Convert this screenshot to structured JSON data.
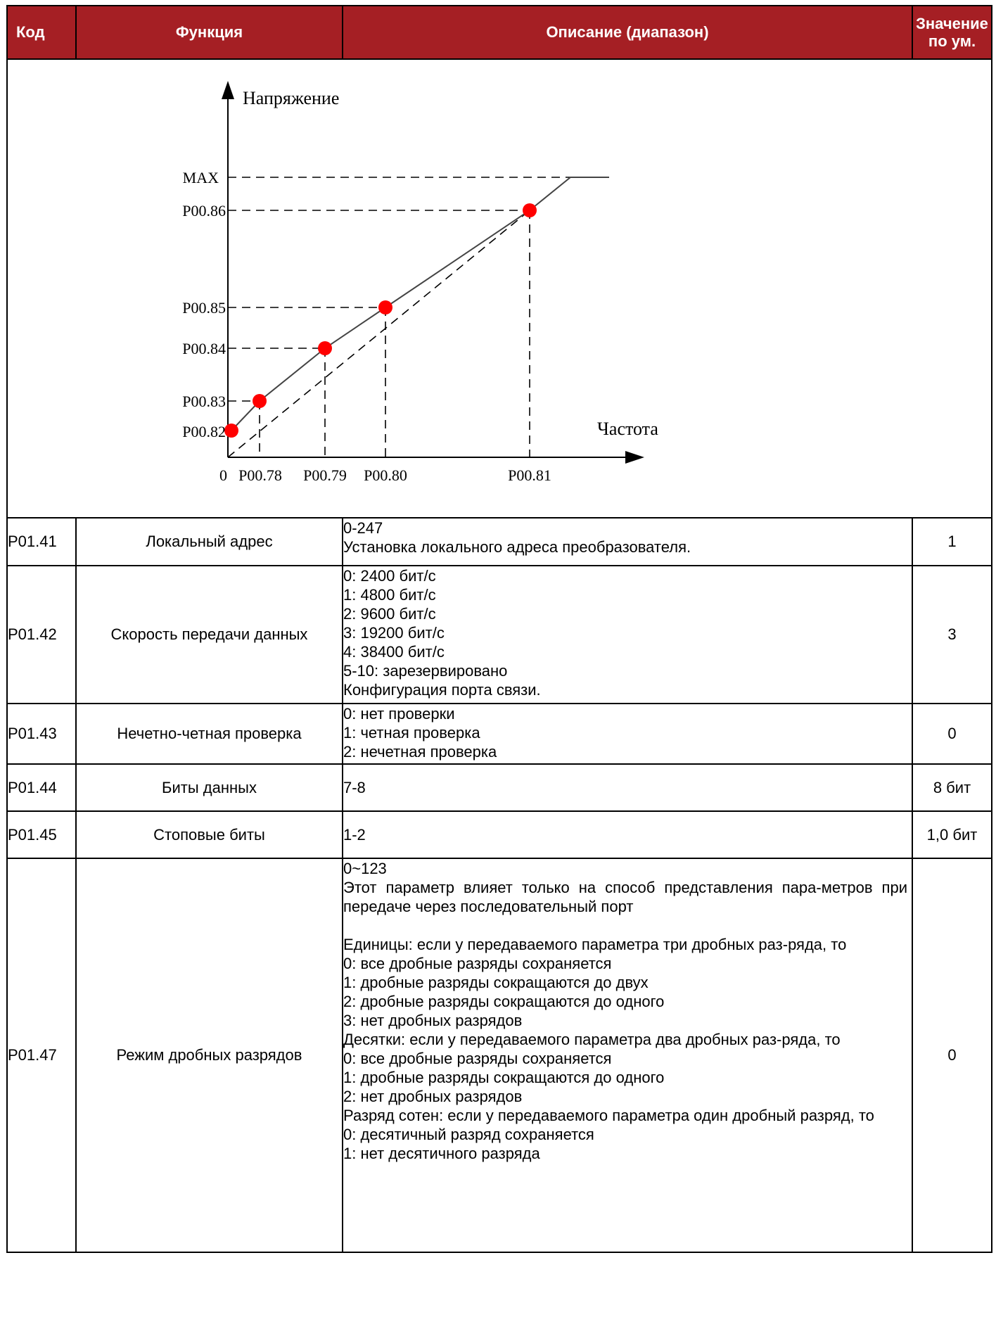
{
  "header": {
    "code": "Код",
    "function": "Функция",
    "description": "Описание (диапазон)",
    "default_line1": "Значение",
    "default_line2": "по ум."
  },
  "colors": {
    "header_bg": "#a51f24",
    "point": "#ff0000"
  },
  "diagram": {
    "y_axis_label": "Напряжение",
    "x_axis_label": "Частота",
    "y_max_label": "MAX",
    "y_ticks": [
      "P00.86",
      "P00.85",
      "P00.84",
      "P00.83",
      "P00.82"
    ],
    "x_ticks": [
      "0",
      "P00.78",
      "P00.79",
      "P00.80",
      "P00.81"
    ],
    "points_color_name": "red"
  },
  "rows": [
    {
      "code": "P01.41",
      "function": "Локальный адрес",
      "lines": [
        "0-247",
        "Установка локального адреса преобразователя."
      ],
      "default": "1"
    },
    {
      "code": "P01.42",
      "function": "Скорость передачи данных",
      "lines": [
        "0: 2400 бит/с",
        "1: 4800 бит/с",
        "2: 9600 бит/с",
        "3: 19200 бит/с",
        "4: 38400 бит/с",
        "5-10: зарезервировано",
        "Конфигурация порта связи."
      ],
      "default": "3"
    },
    {
      "code": "P01.43",
      "function": "Нечетно-четная проверка",
      "lines": [
        "0: нет проверки",
        "1: четная проверка",
        "2: нечетная проверка"
      ],
      "default": "0"
    },
    {
      "code": "P01.44",
      "function": "Биты данных",
      "lines": [
        "7-8"
      ],
      "default": "8 бит"
    },
    {
      "code": "P01.45",
      "function": "Стоповые биты",
      "lines": [
        "1-2"
      ],
      "default": "1,0 бит"
    },
    {
      "code": "P01.47",
      "function": "Режим дробных разрядов",
      "range": "0~123",
      "para1": "Этот параметр влияет только на способ представления пара-метров при передаче через последовательный порт",
      "units_title": "Единицы: если у передаваемого параметра три дробных раз-ряда, то",
      "units_opts": [
        "0: все дробные разряды сохраняется",
        "1: дробные разряды сокращаются до двух",
        "2: дробные разряды сокращаются до одного",
        "3: нет дробных разрядов"
      ],
      "tens_title": "Десятки: если у передаваемого параметра два дробных раз-ряда, то",
      "tens_opts": [
        "0: все дробные разряды сохраняется",
        "1: дробные разряды сокращаются до одного",
        "2: нет дробных разрядов"
      ],
      "hundreds_title": "Разряд сотен: если у передаваемого параметра один дробный разряд, то",
      "hundreds_opts": [
        "0: десятичный разряд сохраняется",
        "1: нет десятичного разряда"
      ],
      "default": "0"
    }
  ]
}
